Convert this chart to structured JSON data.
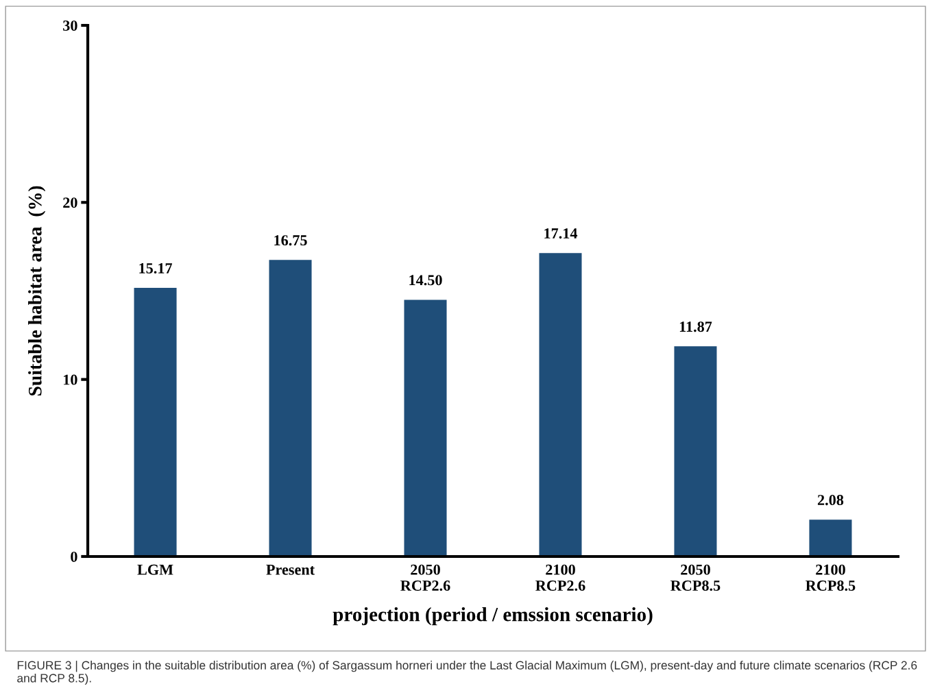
{
  "chart_data": {
    "type": "bar",
    "categories": [
      "LGM",
      "Present",
      "2050\nRCP2.6",
      "2100\nRCP2.6",
      "2050\nRCP8.5",
      "2100\nRCP8.5"
    ],
    "values": [
      15.17,
      16.75,
      14.5,
      17.14,
      11.87,
      2.08
    ],
    "value_labels": [
      "15.17",
      "16.75",
      "14.50",
      "17.14",
      "11.87",
      "2.08"
    ],
    "color": "#1f4e79",
    "ylim": [
      0,
      30
    ],
    "yticks": [
      0,
      10,
      20,
      30
    ],
    "ylabel": "Suitable habitat area  (%)",
    "xlabel": "projection (period / emssion scenario)",
    "grid": false,
    "legend": false,
    "annotations": [
      "FIGURE 3 | Changes in the suitable distribution area (%) of Sargassum horneri under the Last Glacial Maximum (LGM), present-day and future climate scenarios (RCP 2.6 and RCP 8.5)."
    ]
  }
}
